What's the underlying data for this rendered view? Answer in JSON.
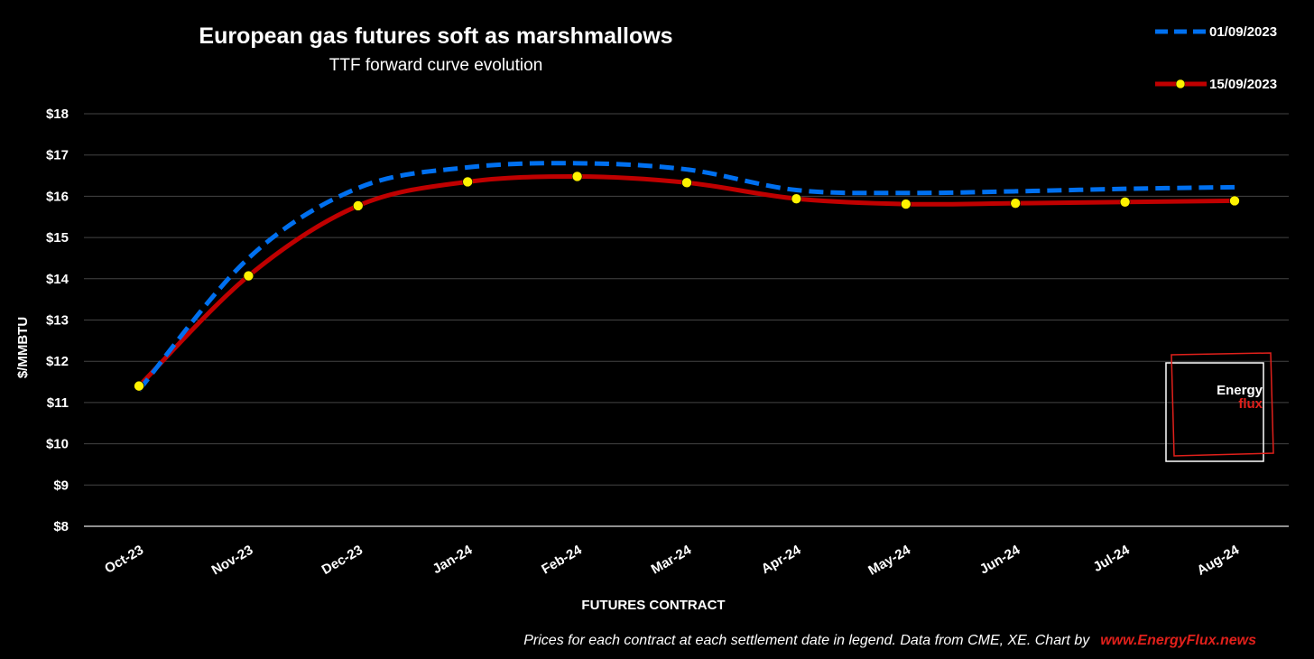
{
  "colors": {
    "background": "#000000",
    "grid": "#444444",
    "axis": "#bfbfbf",
    "series1": "#0070F0",
    "series2": "#C00000",
    "marker": "#FFF200",
    "brand": "#E0201B"
  },
  "chart_data": {
    "type": "line",
    "title": "European gas futures soft as marshmallows",
    "subtitle": "TTF forward curve evolution",
    "xlabel": "FUTURES CONTRACT",
    "ylabel": "$/MMBTU",
    "ylim": [
      8,
      18
    ],
    "yticks": [
      8,
      9,
      10,
      11,
      12,
      13,
      14,
      15,
      16,
      17,
      18
    ],
    "ytick_labels": [
      "$8",
      "$9",
      "$10",
      "$11",
      "$12",
      "$13",
      "$14",
      "$15",
      "$16",
      "$17",
      "$18"
    ],
    "categories": [
      "Oct-23",
      "Nov-23",
      "Dec-23",
      "Jan-24",
      "Feb-24",
      "Mar-24",
      "Apr-24",
      "May-24",
      "Jun-24",
      "Jul-24",
      "Aug-24"
    ],
    "legend_position": "top-right",
    "series": [
      {
        "name": "01/09/2023",
        "style": "dashed",
        "markers": false,
        "values": [
          11.3,
          14.5,
          16.2,
          16.7,
          16.8,
          16.65,
          16.15,
          16.08,
          16.12,
          16.18,
          16.22
        ]
      },
      {
        "name": "15/09/2023",
        "style": "solid",
        "markers": true,
        "values": [
          11.4,
          14.07,
          15.77,
          16.35,
          16.48,
          16.33,
          15.94,
          15.81,
          15.83,
          15.86,
          15.89
        ]
      }
    ]
  },
  "footer": {
    "text": "Prices for each contract at each settlement date in legend. Data from CME, XE. Chart by",
    "link": "www.EnergyFlux.news"
  },
  "logo": {
    "line1": "Energy",
    "line2": "flux"
  }
}
